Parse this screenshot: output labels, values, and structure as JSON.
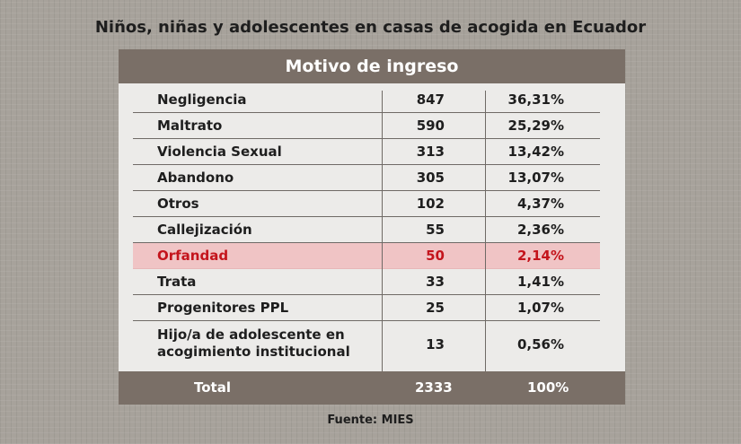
{
  "title": "Niños, niñas y adolescentes en casas de acogida en Ecuador",
  "source": "Fuente: MIES",
  "chart_data": {
    "type": "table",
    "header": "Motivo de ingreso",
    "rows": [
      {
        "label": "Negligencia",
        "count": "847",
        "percent": "36,31%"
      },
      {
        "label": "Maltrato",
        "count": "590",
        "percent": "25,29%"
      },
      {
        "label": "Violencia Sexual",
        "count": "313",
        "percent": "13,42%"
      },
      {
        "label": "Abandono",
        "count": "305",
        "percent": "13,07%"
      },
      {
        "label": "Otros",
        "count": "102",
        "percent": "4,37%"
      },
      {
        "label": "Callejización",
        "count": "55",
        "percent": "2,36%"
      },
      {
        "label": "Orfandad",
        "count": "50",
        "percent": "2,14%",
        "highlight": true
      },
      {
        "label": "Trata",
        "count": "33",
        "percent": "1,41%"
      },
      {
        "label": "Progenitores PPL",
        "count": "25",
        "percent": "1,07%"
      },
      {
        "label": "Hijo/a de adolescente en\nacogimiento institucional",
        "count": "13",
        "percent": "0,56%"
      }
    ],
    "total": {
      "label": "Total",
      "count": "2333",
      "percent": "100%"
    }
  },
  "colors": {
    "background": "#a7a29b",
    "header_bg": "#7a6f67",
    "panel_bg": "#ecebe9",
    "highlight_bg": "#f0c4c5",
    "highlight_text": "#c4141c"
  }
}
